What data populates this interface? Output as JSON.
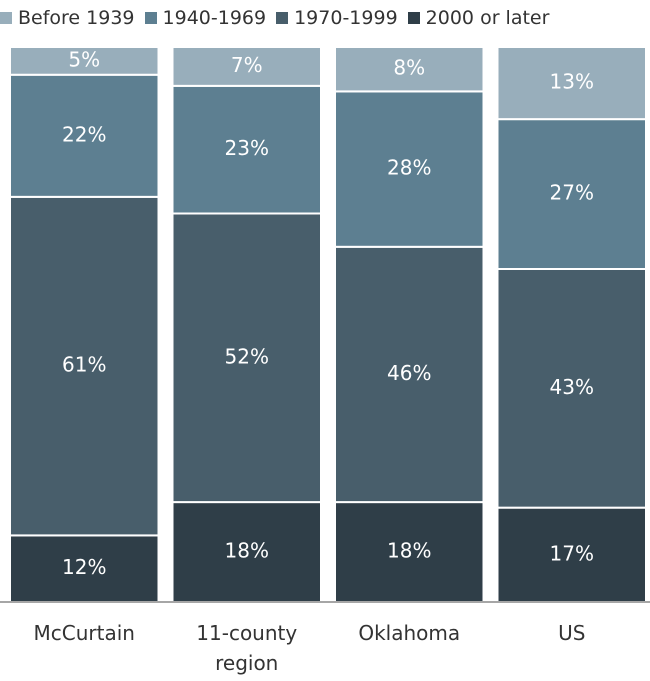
{
  "chart_data": {
    "type": "stacked_bar",
    "categories": [
      "McCurtain",
      "11-county region",
      "Oklahoma",
      "US"
    ],
    "ylim": [
      0,
      100
    ],
    "series": [
      {
        "name": "Before 1939",
        "color": "#98aebb",
        "values": [
          5,
          7,
          8,
          13
        ],
        "value_labels": [
          "5%",
          "7%",
          "8%",
          "13%"
        ]
      },
      {
        "name": "1940-1969",
        "color": "#5d7f91",
        "values": [
          22,
          23,
          28,
          27
        ],
        "value_labels": [
          "22%",
          "23%",
          "28%",
          "27%"
        ]
      },
      {
        "name": "1970-1999",
        "color": "#485e6b",
        "values": [
          61,
          52,
          46,
          43
        ],
        "value_labels": [
          "61%",
          "52%",
          "46%",
          "43%"
        ]
      },
      {
        "name": "2000 or later",
        "color": "#2f3e48",
        "values": [
          12,
          18,
          18,
          17
        ],
        "value_labels": [
          "12%",
          "18%",
          "18%",
          "17%"
        ]
      }
    ]
  }
}
